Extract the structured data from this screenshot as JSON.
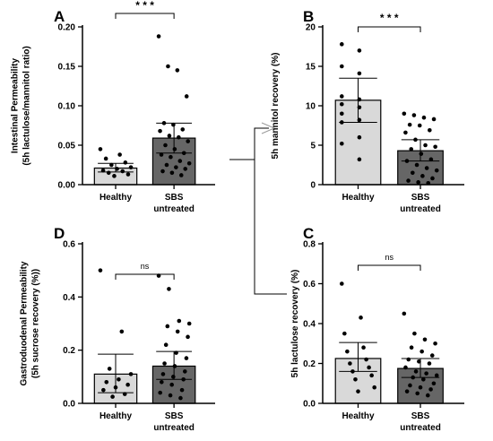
{
  "colors": {
    "healthy_bar": "#d9d9d9",
    "sbs_bar": "#666666",
    "points": "#000000",
    "connector": "#000000",
    "arrow": "#9a9a9a"
  },
  "chart_data": [
    {
      "panel": "A",
      "type": "bar",
      "ylabel_lines": [
        "Intestinal Permeability",
        "(5h lactulose/mannitol ratio)"
      ],
      "ylim": [
        0,
        0.2
      ],
      "yticks": [
        "0.00",
        "0.05",
        "0.10",
        "0.15",
        "0.20"
      ],
      "ytick_values": [
        0,
        0.05,
        0.1,
        0.15,
        0.2
      ],
      "categories": [
        [
          "Healthy"
        ],
        [
          "SBS",
          "untreated"
        ]
      ],
      "values": [
        0.021,
        0.059
      ],
      "errors": [
        [
          0.016,
          0.027
        ],
        [
          0.04,
          0.078
        ]
      ],
      "points": [
        [
          0.045,
          0.038,
          0.033,
          0.028,
          0.025,
          0.022,
          0.02,
          0.018,
          0.017,
          0.015,
          0.013,
          0.011
        ],
        [
          0.188,
          0.15,
          0.145,
          0.112,
          0.078,
          0.076,
          0.07,
          0.068,
          0.062,
          0.06,
          0.055,
          0.05,
          0.045,
          0.04,
          0.038,
          0.035,
          0.03,
          0.027,
          0.025,
          0.022,
          0.02,
          0.017,
          0.015,
          0.012
        ]
      ],
      "significance": "* * *"
    },
    {
      "panel": "B",
      "type": "bar",
      "ylabel_lines": [
        "5h mannitol recovery (%)"
      ],
      "ylim": [
        0,
        20
      ],
      "yticks": [
        "0",
        "5",
        "10",
        "15",
        "20"
      ],
      "ytick_values": [
        0,
        5,
        10,
        15,
        20
      ],
      "categories": [
        [
          "Healthy"
        ],
        [
          "SBS",
          "untreated"
        ]
      ],
      "values": [
        10.7,
        4.3
      ],
      "errors": [
        [
          7.9,
          13.5
        ],
        [
          3.0,
          5.7
        ]
      ],
      "points": [
        [
          17.8,
          17.0,
          15.0,
          14.1,
          11.2,
          10.8,
          10.2,
          9.8,
          9.0,
          8.2,
          7.9,
          6.0,
          5.2,
          3.2
        ],
        [
          9.0,
          8.8,
          8.5,
          8.3,
          7.6,
          7.5,
          6.9,
          6.6,
          5.7,
          5.0,
          4.8,
          4.5,
          3.9,
          3.2,
          3.0,
          2.5,
          2.1,
          1.8,
          1.5,
          1.1,
          0.8,
          0.5,
          0.3,
          0.2
        ]
      ],
      "significance": "* * *"
    },
    {
      "panel": "D",
      "type": "bar",
      "ylabel_lines": [
        "Gastroduodenal Permeability",
        "(5h sucrose recovery (%))"
      ],
      "ylim": [
        0,
        0.6
      ],
      "yticks": [
        "0.0",
        "0.2",
        "0.4",
        "0.6"
      ],
      "ytick_values": [
        0,
        0.2,
        0.4,
        0.6
      ],
      "categories": [
        [
          "Healthy"
        ],
        [
          "SBS",
          "untreated"
        ]
      ],
      "values": [
        0.11,
        0.14
      ],
      "errors": [
        [
          0.04,
          0.185
        ],
        [
          0.09,
          0.195
        ]
      ],
      "points": [
        [
          0.5,
          0.27,
          0.13,
          0.11,
          0.09,
          0.08,
          0.07,
          0.06,
          0.05,
          0.035,
          0.025
        ],
        [
          0.48,
          0.43,
          0.31,
          0.3,
          0.29,
          0.27,
          0.25,
          0.22,
          0.19,
          0.17,
          0.15,
          0.14,
          0.12,
          0.11,
          0.1,
          0.09,
          0.08,
          0.07,
          0.05,
          0.04,
          0.03,
          0.02
        ]
      ],
      "significance": "ns"
    },
    {
      "panel": "C",
      "type": "bar",
      "ylabel_lines": [
        "5h lactulose recovery (%)"
      ],
      "ylim": [
        0,
        0.8
      ],
      "yticks": [
        "0.0",
        "0.2",
        "0.4",
        "0.6",
        "0.8"
      ],
      "ytick_values": [
        0,
        0.2,
        0.4,
        0.6,
        0.8
      ],
      "categories": [
        [
          "Healthy"
        ],
        [
          "SBS",
          "untreated"
        ]
      ],
      "values": [
        0.225,
        0.175
      ],
      "errors": [
        [
          0.16,
          0.305
        ],
        [
          0.13,
          0.225
        ]
      ],
      "points": [
        [
          0.6,
          0.43,
          0.35,
          0.28,
          0.26,
          0.22,
          0.2,
          0.18,
          0.16,
          0.14,
          0.12,
          0.08,
          0.06
        ],
        [
          0.45,
          0.35,
          0.32,
          0.3,
          0.28,
          0.26,
          0.24,
          0.22,
          0.21,
          0.2,
          0.18,
          0.16,
          0.15,
          0.14,
          0.13,
          0.12,
          0.1,
          0.09,
          0.08,
          0.07,
          0.06,
          0.05,
          0.04
        ]
      ],
      "significance": "ns"
    }
  ]
}
